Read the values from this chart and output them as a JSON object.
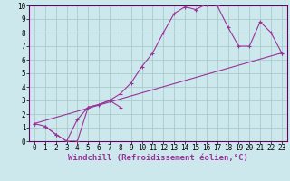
{
  "background_color": "#cce8ec",
  "grid_color": "#aacccc",
  "line_color": "#993399",
  "marker_color": "#993399",
  "xlim": [
    -0.5,
    23.5
  ],
  "ylim": [
    0,
    10
  ],
  "xlabel": "Windchill (Refroidissement éolien,°C)",
  "xlabel_fontsize": 6.5,
  "xtick_fontsize": 5.5,
  "ytick_fontsize": 5.5,
  "series1_x": [
    0,
    1,
    2,
    3,
    4,
    5,
    6,
    7,
    8,
    9,
    10,
    11,
    12,
    13,
    14,
    15,
    16,
    17,
    18,
    19,
    20,
    21,
    22,
    23
  ],
  "series1_y": [
    1.3,
    1.1,
    0.5,
    0.0,
    0.0,
    2.5,
    2.7,
    3.0,
    3.5,
    4.3,
    5.5,
    6.5,
    8.0,
    9.4,
    9.9,
    9.7,
    10.1,
    10.0,
    8.4,
    7.0,
    7.0,
    8.8,
    8.0,
    6.5
  ],
  "series2_x": [
    0,
    23
  ],
  "series2_y": [
    1.3,
    6.5
  ],
  "series3_x": [
    1,
    2,
    3,
    4,
    5,
    6,
    7,
    8
  ],
  "series3_y": [
    1.1,
    0.5,
    0.0,
    1.6,
    2.5,
    2.7,
    3.0,
    2.5
  ]
}
